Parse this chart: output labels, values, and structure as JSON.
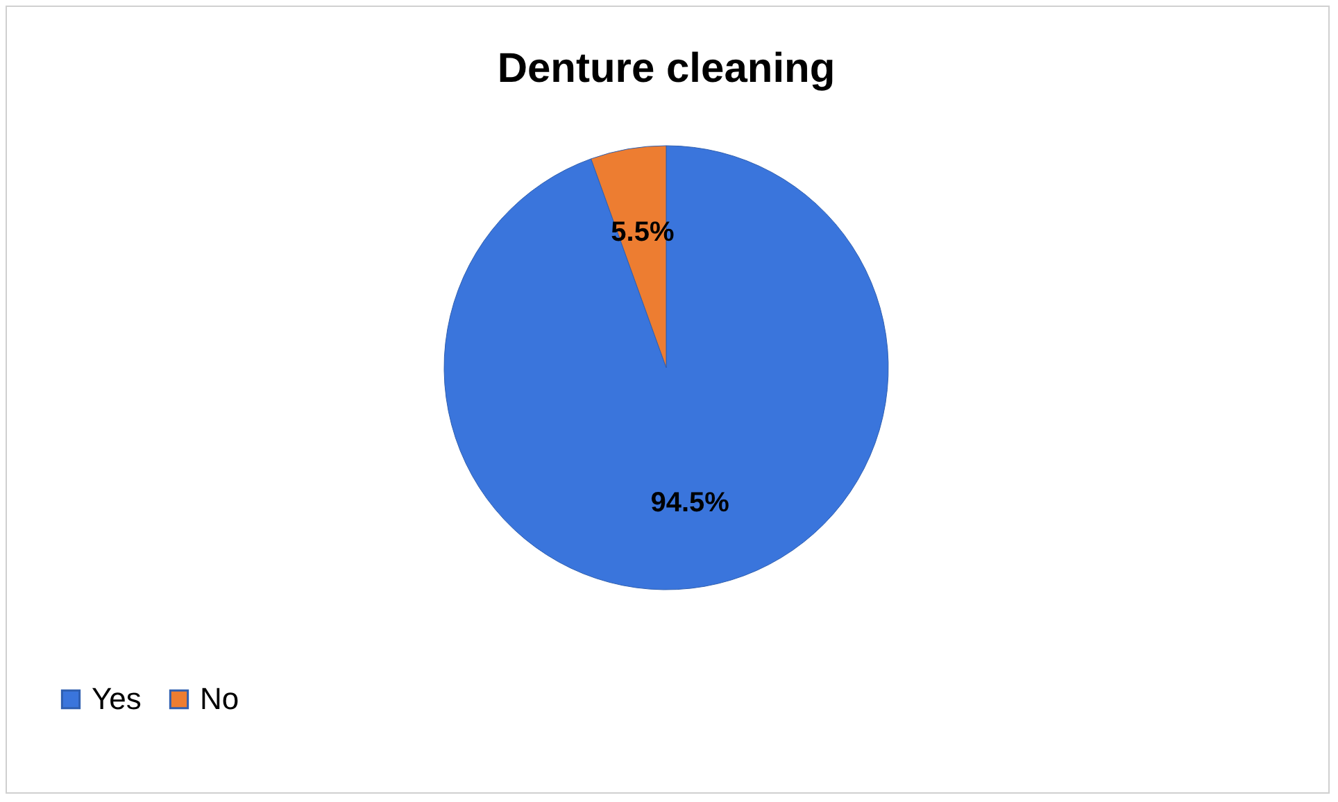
{
  "chart_data": {
    "type": "pie",
    "title": "Denture cleaning",
    "categories": [
      "Yes",
      "No"
    ],
    "values": [
      94.5,
      5.5
    ],
    "colors": [
      "#3a75dc",
      "#ed7d31"
    ],
    "value_labels": [
      "94.5%",
      "5.5%"
    ],
    "legend": "bottom"
  }
}
